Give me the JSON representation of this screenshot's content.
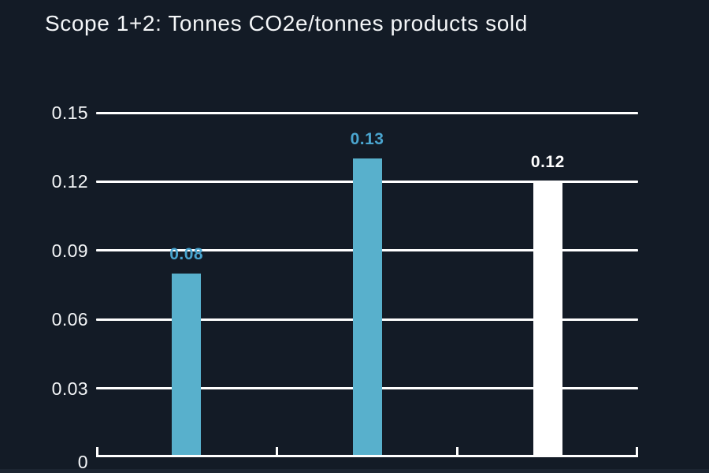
{
  "title": "Scope 1+2: Tonnes CO2e/tonnes products sold",
  "colors": {
    "background": "#131B26",
    "bar_teal": "#58B0CC",
    "bar_white": "#FFFFFF",
    "value_label_teal": "#4AA5CF",
    "value_label_white": "#FFFFFF",
    "grid": "#FFFFFF",
    "text": "#F4F6F8"
  },
  "chart_data": {
    "type": "bar",
    "title": "Scope 1+2: Tonnes CO2e/tonnes products sold",
    "values": [
      0.08,
      0.13,
      0.12
    ],
    "bar_value_labels": [
      "0.08",
      "0.13",
      "0.12"
    ],
    "bar_colors": [
      "#58B0CC",
      "#58B0CC",
      "#FFFFFF"
    ],
    "bar_label_colors": [
      "#4AA5CF",
      "#4AA5CF",
      "#FFFFFF"
    ],
    "xlabel": "",
    "ylabel": "",
    "ylim": [
      0,
      0.15
    ],
    "yticks": [
      0,
      0.03,
      0.06,
      0.09,
      0.12,
      0.15
    ],
    "ytick_labels": [
      "0",
      "0.03",
      "0.06",
      "0.09",
      "0.12",
      "0.15"
    ],
    "x_section_ticks": 4,
    "grid": true,
    "legend": false
  }
}
